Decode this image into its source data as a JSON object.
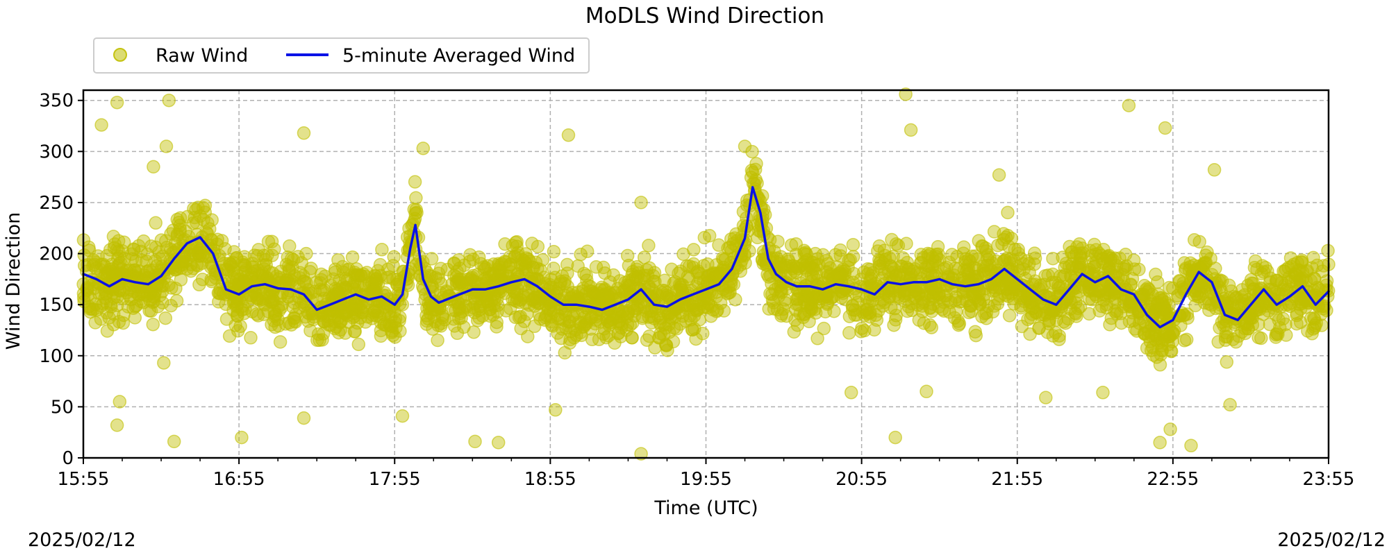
{
  "chart_data": {
    "type": "scatter",
    "title": "MoDLS Wind Direction",
    "xlabel": "Time (UTC)",
    "ylabel": "Wind Direction",
    "x_ticks": [
      "15:55",
      "16:55",
      "17:55",
      "18:55",
      "19:55",
      "20:55",
      "21:55",
      "22:55",
      "23:55"
    ],
    "xlim": [
      "15:55",
      "23:55"
    ],
    "ylim": [
      0,
      360
    ],
    "y_ticks": [
      0,
      50,
      100,
      150,
      200,
      250,
      300,
      350
    ],
    "grid": true,
    "legend_position": "top-left",
    "date_left": "2025/02/12",
    "date_right": "2025/02/12",
    "colors": {
      "raw": "#c0bf00",
      "avg": "#0a12e6",
      "grid": "#b0b0b0"
    },
    "series": [
      {
        "name": "Raw Wind",
        "kind": "scatter",
        "note_points": "approximate; dense scatter around the average with spread",
        "spread": 35,
        "outliers": [
          {
            "x": "16:28",
            "y": 350
          },
          {
            "x": "16:30",
            "y": 16
          },
          {
            "x": "16:08",
            "y": 348
          },
          {
            "x": "16:02",
            "y": 326
          },
          {
            "x": "16:27",
            "y": 305
          },
          {
            "x": "16:08",
            "y": 32
          },
          {
            "x": "16:09",
            "y": 55
          },
          {
            "x": "16:26",
            "y": 93
          },
          {
            "x": "16:56",
            "y": 20
          },
          {
            "x": "17:20",
            "y": 318
          },
          {
            "x": "17:20",
            "y": 39
          },
          {
            "x": "17:58",
            "y": 41
          },
          {
            "x": "18:06",
            "y": 303
          },
          {
            "x": "18:26",
            "y": 16
          },
          {
            "x": "18:35",
            "y": 15
          },
          {
            "x": "19:02",
            "y": 316
          },
          {
            "x": "18:57",
            "y": 47
          },
          {
            "x": "19:30",
            "y": 4
          },
          {
            "x": "19:30",
            "y": 250
          },
          {
            "x": "20:10",
            "y": 305
          },
          {
            "x": "20:51",
            "y": 64
          },
          {
            "x": "21:12",
            "y": 356
          },
          {
            "x": "21:08",
            "y": 20
          },
          {
            "x": "21:14",
            "y": 321
          },
          {
            "x": "21:20",
            "y": 65
          },
          {
            "x": "21:48",
            "y": 277
          },
          {
            "x": "22:06",
            "y": 59
          },
          {
            "x": "22:38",
            "y": 345
          },
          {
            "x": "22:52",
            "y": 323
          },
          {
            "x": "22:50",
            "y": 15
          },
          {
            "x": "22:54",
            "y": 28
          },
          {
            "x": "23:02",
            "y": 12
          },
          {
            "x": "23:11",
            "y": 282
          },
          {
            "x": "23:17",
            "y": 52
          },
          {
            "x": "22:28",
            "y": 64
          },
          {
            "x": "16:22",
            "y": 285
          }
        ]
      },
      {
        "name": "5-minute Averaged Wind",
        "kind": "line",
        "x": [
          "15:55",
          "16:00",
          "16:05",
          "16:10",
          "16:15",
          "16:20",
          "16:25",
          "16:30",
          "16:35",
          "16:40",
          "16:45",
          "16:50",
          "16:55",
          "17:00",
          "17:05",
          "17:10",
          "17:15",
          "17:20",
          "17:25",
          "17:30",
          "17:35",
          "17:40",
          "17:45",
          "17:50",
          "17:55",
          "17:58",
          "18:01",
          "18:03",
          "18:06",
          "18:09",
          "18:12",
          "18:15",
          "18:20",
          "18:25",
          "18:30",
          "18:35",
          "18:40",
          "18:45",
          "18:50",
          "18:55",
          "19:00",
          "19:05",
          "19:10",
          "19:15",
          "19:20",
          "19:25",
          "19:30",
          "19:35",
          "19:40",
          "19:45",
          "19:50",
          "19:55",
          "20:00",
          "20:05",
          "20:10",
          "20:13",
          "20:16",
          "20:19",
          "20:22",
          "20:26",
          "20:30",
          "20:35",
          "20:40",
          "20:45",
          "20:50",
          "20:55",
          "21:00",
          "21:05",
          "21:10",
          "21:15",
          "21:20",
          "21:25",
          "21:30",
          "21:35",
          "21:40",
          "21:45",
          "21:50",
          "21:55",
          "22:00",
          "22:05",
          "22:10",
          "22:15",
          "22:20",
          "22:25",
          "22:30",
          "22:35",
          "22:40",
          "22:45",
          "22:50",
          "22:55",
          "23:00",
          "23:05",
          "23:10",
          "23:15",
          "23:20",
          "23:25",
          "23:30",
          "23:35",
          "23:40",
          "23:45",
          "23:50",
          "23:55"
        ],
        "values": [
          180,
          175,
          168,
          175,
          172,
          170,
          178,
          195,
          210,
          216,
          200,
          165,
          160,
          168,
          170,
          166,
          165,
          160,
          145,
          150,
          155,
          160,
          155,
          158,
          150,
          160,
          205,
          228,
          175,
          158,
          152,
          155,
          160,
          165,
          165,
          168,
          172,
          175,
          168,
          158,
          150,
          150,
          148,
          145,
          150,
          155,
          165,
          150,
          148,
          155,
          160,
          165,
          170,
          185,
          215,
          265,
          240,
          195,
          180,
          172,
          168,
          168,
          165,
          170,
          168,
          165,
          160,
          172,
          170,
          172,
          172,
          175,
          170,
          168,
          170,
          175,
          185,
          175,
          165,
          155,
          150,
          165,
          180,
          172,
          178,
          165,
          160,
          140,
          128,
          135,
          160,
          182,
          172,
          140,
          135,
          150,
          165,
          150,
          158,
          168,
          150,
          163
        ]
      }
    ]
  }
}
